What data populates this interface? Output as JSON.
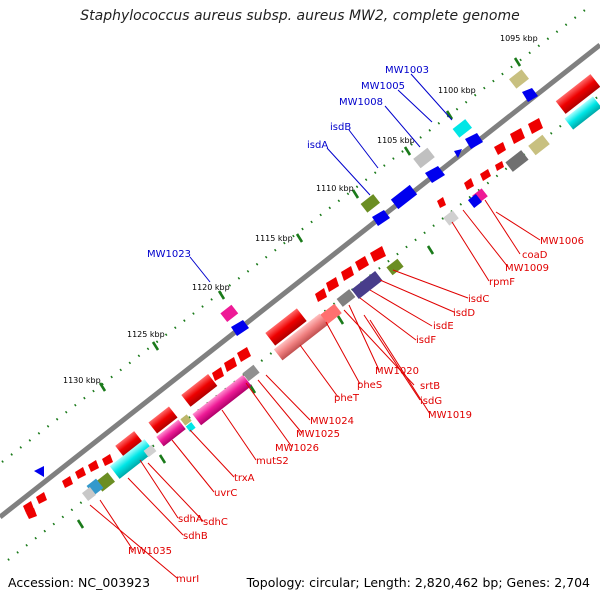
{
  "title": "Staphylococcus aureus subsp. aureus MW2, complete genome",
  "footer": {
    "accession": "Accession: NC_003923",
    "summary": "Topology: circular; Length: 2,820,462 bp; Genes: 2,704"
  },
  "kbp_labels": [
    "1095 kbp",
    "1100 kbp",
    "1105 kbp",
    "1110 kbp",
    "1115 kbp",
    "1120 kbp",
    "1125 kbp",
    "1130 kbp"
  ],
  "top_gene_labels": [
    "MW1003",
    "MW1005",
    "MW1008",
    "isdB",
    "isdA",
    "MW1023"
  ],
  "bottom_gene_labels": [
    "MW1006",
    "coaD",
    "MW1009",
    "rpmF",
    "isdC",
    "isdD",
    "isdE",
    "isdF",
    "MW1020",
    "srtB",
    "isdG",
    "MW1019",
    "pheS",
    "pheT",
    "MW1024",
    "MW1025",
    "MW1026",
    "mutS2",
    "trxA",
    "uvrC",
    "sdhA",
    "sdhC",
    "sdhB",
    "MW1035",
    "murI"
  ],
  "colors": {
    "backbone": "#808080",
    "forward_gene": "#ee0000",
    "reverse_gene": "#0000ee",
    "top_label": "#0000cc",
    "bottom_label": "#e00000",
    "tick": "#1a7a1a"
  }
}
